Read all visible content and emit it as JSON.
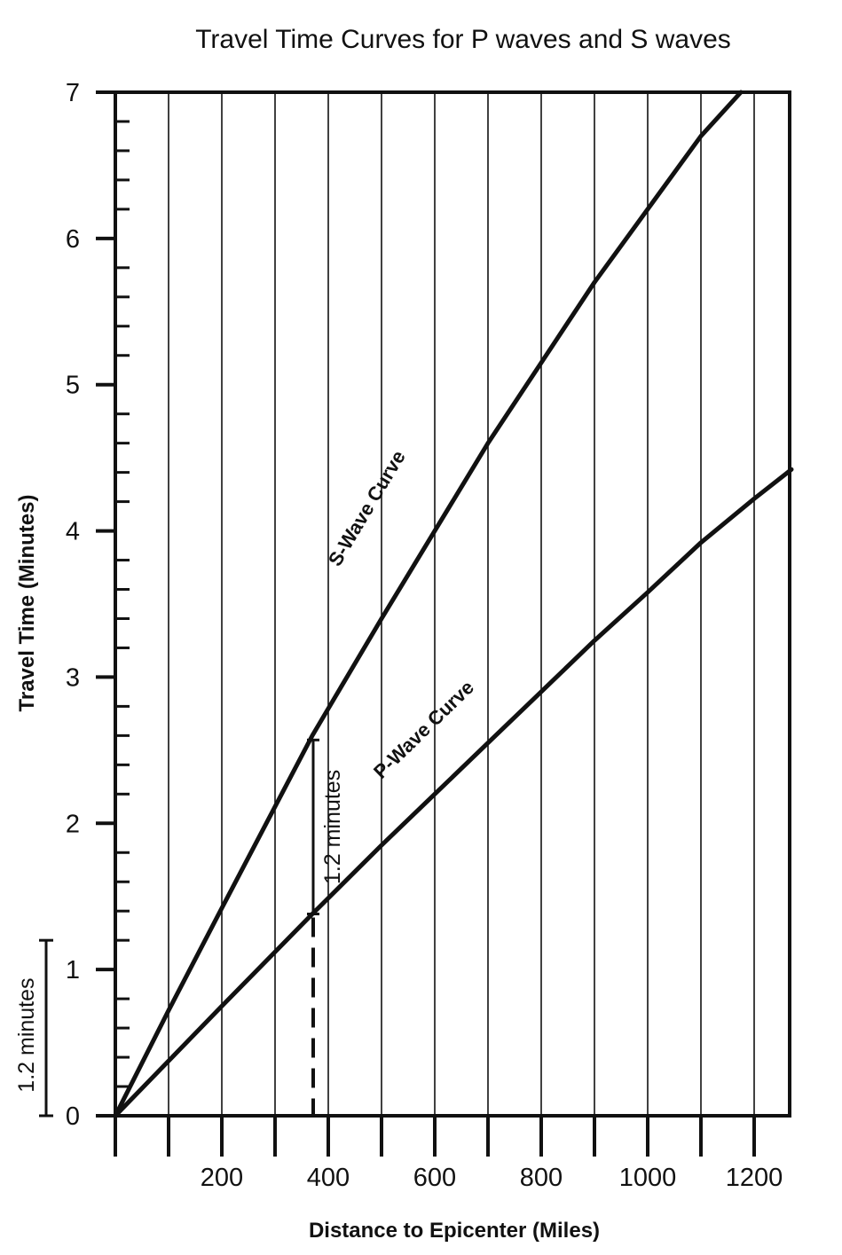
{
  "chart_data": {
    "type": "line",
    "title": "Travel Time Curves for P waves and S waves",
    "xlabel": "Distance to Epicenter  (Miles)",
    "ylabel": "Travel Time (Minutes)",
    "xlim": [
      0,
      1270
    ],
    "ylim": [
      0,
      7
    ],
    "x_tick_labels": [
      "200",
      "400",
      "600",
      "800",
      "1000",
      "1200"
    ],
    "y_tick_labels": [
      "0",
      "1",
      "2",
      "3",
      "4",
      "5",
      "6",
      "7"
    ],
    "grid": "vertical lines every 100 miles",
    "series": [
      {
        "name": "S-Wave Curve",
        "x": [
          0,
          100,
          200,
          370,
          500,
          600,
          700,
          800,
          900,
          1000,
          1100,
          1175
        ],
        "y": [
          0,
          0.72,
          1.42,
          2.6,
          3.4,
          4.0,
          4.6,
          5.15,
          5.7,
          6.2,
          6.7,
          7.0
        ]
      },
      {
        "name": "P-Wave Curve",
        "x": [
          0,
          200,
          370,
          500,
          600,
          700,
          800,
          900,
          1000,
          1100,
          1200,
          1270
        ],
        "y": [
          0,
          0.75,
          1.38,
          1.85,
          2.2,
          2.55,
          2.9,
          3.25,
          3.58,
          3.92,
          4.22,
          4.42
        ]
      }
    ],
    "annotations": [
      {
        "label": "1.2 minutes",
        "x": 375,
        "y_from": 1.38,
        "y_to": 2.57
      },
      {
        "label": "1.2 minutes",
        "y_from": 0,
        "y_to": 1.2
      }
    ],
    "dashed_marker_x": 375
  },
  "colors": {
    "ink": "#111111",
    "background": "#ffffff"
  }
}
